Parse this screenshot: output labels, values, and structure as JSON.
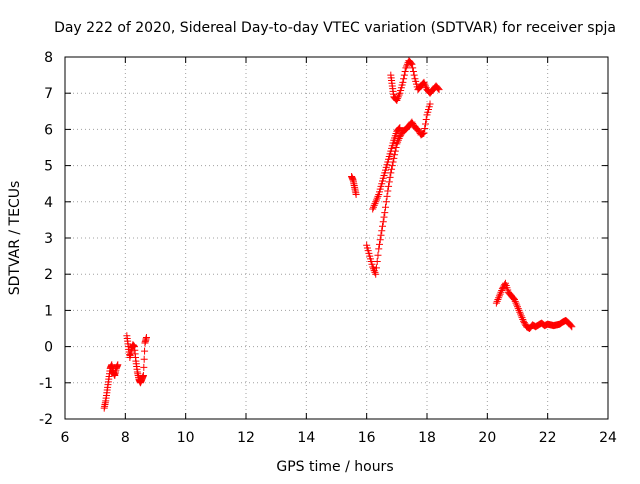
{
  "chart_data": {
    "type": "scatter",
    "title": "Day 222 of 2020, Sidereal Day-to-day VTEC variation (SDTVAR) for receiver spja",
    "xlabel": "GPS time / hours",
    "ylabel": "SDTVAR / TECUs",
    "xlim": [
      6,
      24
    ],
    "ylim": [
      -2,
      8
    ],
    "xticks": [
      6,
      8,
      10,
      12,
      14,
      16,
      18,
      20,
      22,
      24
    ],
    "yticks": [
      -2,
      -1,
      0,
      1,
      2,
      3,
      4,
      5,
      6,
      7,
      8
    ],
    "grid": true,
    "marker": "+",
    "color": "#ff0000",
    "series": [
      {
        "name": "SDTVAR",
        "segments": [
          {
            "x": [
              7.3,
              7.35,
              7.4,
              7.45,
              7.5,
              7.55,
              7.6,
              7.65,
              7.7,
              7.75
            ],
            "y": [
              -1.7,
              -1.5,
              -1.2,
              -0.9,
              -0.6,
              -0.5,
              -0.7,
              -0.8,
              -0.6,
              -0.5
            ]
          },
          {
            "x": [
              8.05,
              8.1,
              8.15,
              8.2,
              8.25,
              8.3,
              8.35,
              8.4,
              8.45,
              8.5,
              8.55,
              8.6,
              8.65,
              8.7
            ],
            "y": [
              0.3,
              0.0,
              -0.3,
              -0.1,
              0.05,
              0.0,
              -0.4,
              -0.7,
              -0.9,
              -1.0,
              -0.9,
              -0.8,
              0.1,
              0.25
            ]
          },
          {
            "x": [
              15.5,
              15.55,
              15.6,
              15.65
            ],
            "y": [
              4.7,
              4.6,
              4.4,
              4.2
            ]
          },
          {
            "x": [
              16.0,
              16.1,
              16.2,
              16.3,
              16.4,
              16.5,
              16.6,
              16.7,
              16.8,
              16.9,
              17.0,
              17.1,
              17.2,
              17.3,
              17.4,
              17.5,
              17.6,
              17.7,
              17.8,
              17.9,
              18.0,
              18.1
            ],
            "y": [
              2.8,
              2.5,
              2.2,
              2.0,
              2.7,
              3.2,
              3.7,
              4.3,
              4.8,
              5.2,
              5.6,
              5.8,
              5.95,
              6.0,
              6.1,
              6.2,
              6.05,
              6.0,
              5.85,
              5.9,
              6.4,
              6.7
            ]
          },
          {
            "x": [
              16.2,
              16.3,
              16.4,
              16.5,
              16.6,
              16.7,
              16.8,
              16.9,
              17.0,
              17.1
            ],
            "y": [
              3.8,
              4.0,
              4.2,
              4.5,
              4.8,
              5.1,
              5.4,
              5.7,
              5.95,
              6.05
            ]
          },
          {
            "x": [
              16.8,
              16.85,
              16.9,
              17.0,
              17.1,
              17.2,
              17.3,
              17.4,
              17.5,
              17.6,
              17.7,
              17.8,
              17.9,
              18.0,
              18.1,
              18.2,
              18.3,
              18.4
            ],
            "y": [
              7.5,
              7.2,
              6.9,
              6.8,
              7.0,
              7.3,
              7.7,
              7.9,
              7.8,
              7.4,
              7.1,
              7.2,
              7.3,
              7.1,
              7.0,
              7.1,
              7.2,
              7.1
            ]
          },
          {
            "x": [
              20.3,
              20.4,
              20.5,
              20.6,
              20.7,
              20.8,
              20.9,
              21.0,
              21.1,
              21.2,
              21.3,
              21.4,
              21.5,
              21.6,
              21.7,
              21.8,
              21.9,
              22.0,
              22.1,
              22.2,
              22.3,
              22.4,
              22.5,
              22.6,
              22.7,
              22.8
            ],
            "y": [
              1.2,
              1.4,
              1.6,
              1.75,
              1.5,
              1.4,
              1.3,
              1.1,
              0.9,
              0.7,
              0.55,
              0.5,
              0.6,
              0.55,
              0.6,
              0.65,
              0.58,
              0.62,
              0.6,
              0.58,
              0.6,
              0.62,
              0.68,
              0.72,
              0.65,
              0.55
            ]
          }
        ]
      }
    ]
  }
}
